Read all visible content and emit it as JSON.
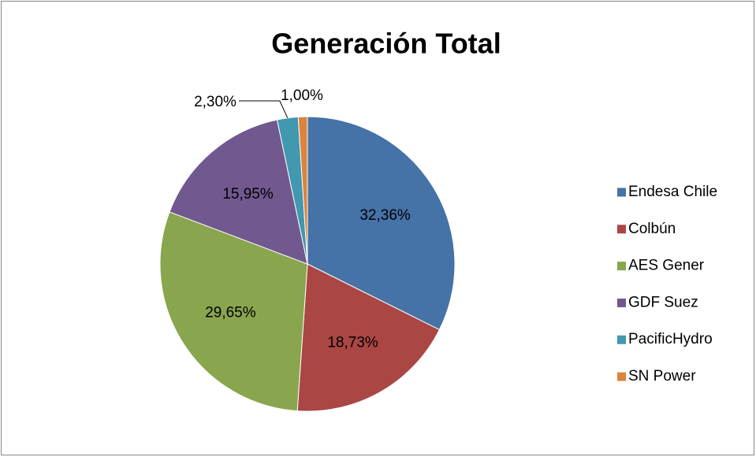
{
  "chart_data": {
    "type": "pie",
    "title": "Generación Total",
    "categories": [
      "Endesa Chile",
      "Colbún",
      "AES Gener",
      "GDF Suez",
      "PacificHydro",
      "SN Power"
    ],
    "values": [
      32.36,
      18.73,
      29.65,
      15.95,
      2.3,
      1.0
    ],
    "value_labels": [
      "32,36%",
      "18,73%",
      "29,65%",
      "15,95%",
      "2,30%",
      "1,00%"
    ],
    "colors": [
      "#4572A7",
      "#AA4643",
      "#89A54E",
      "#71588F",
      "#4198AF",
      "#DB843D"
    ],
    "legend": "right"
  }
}
